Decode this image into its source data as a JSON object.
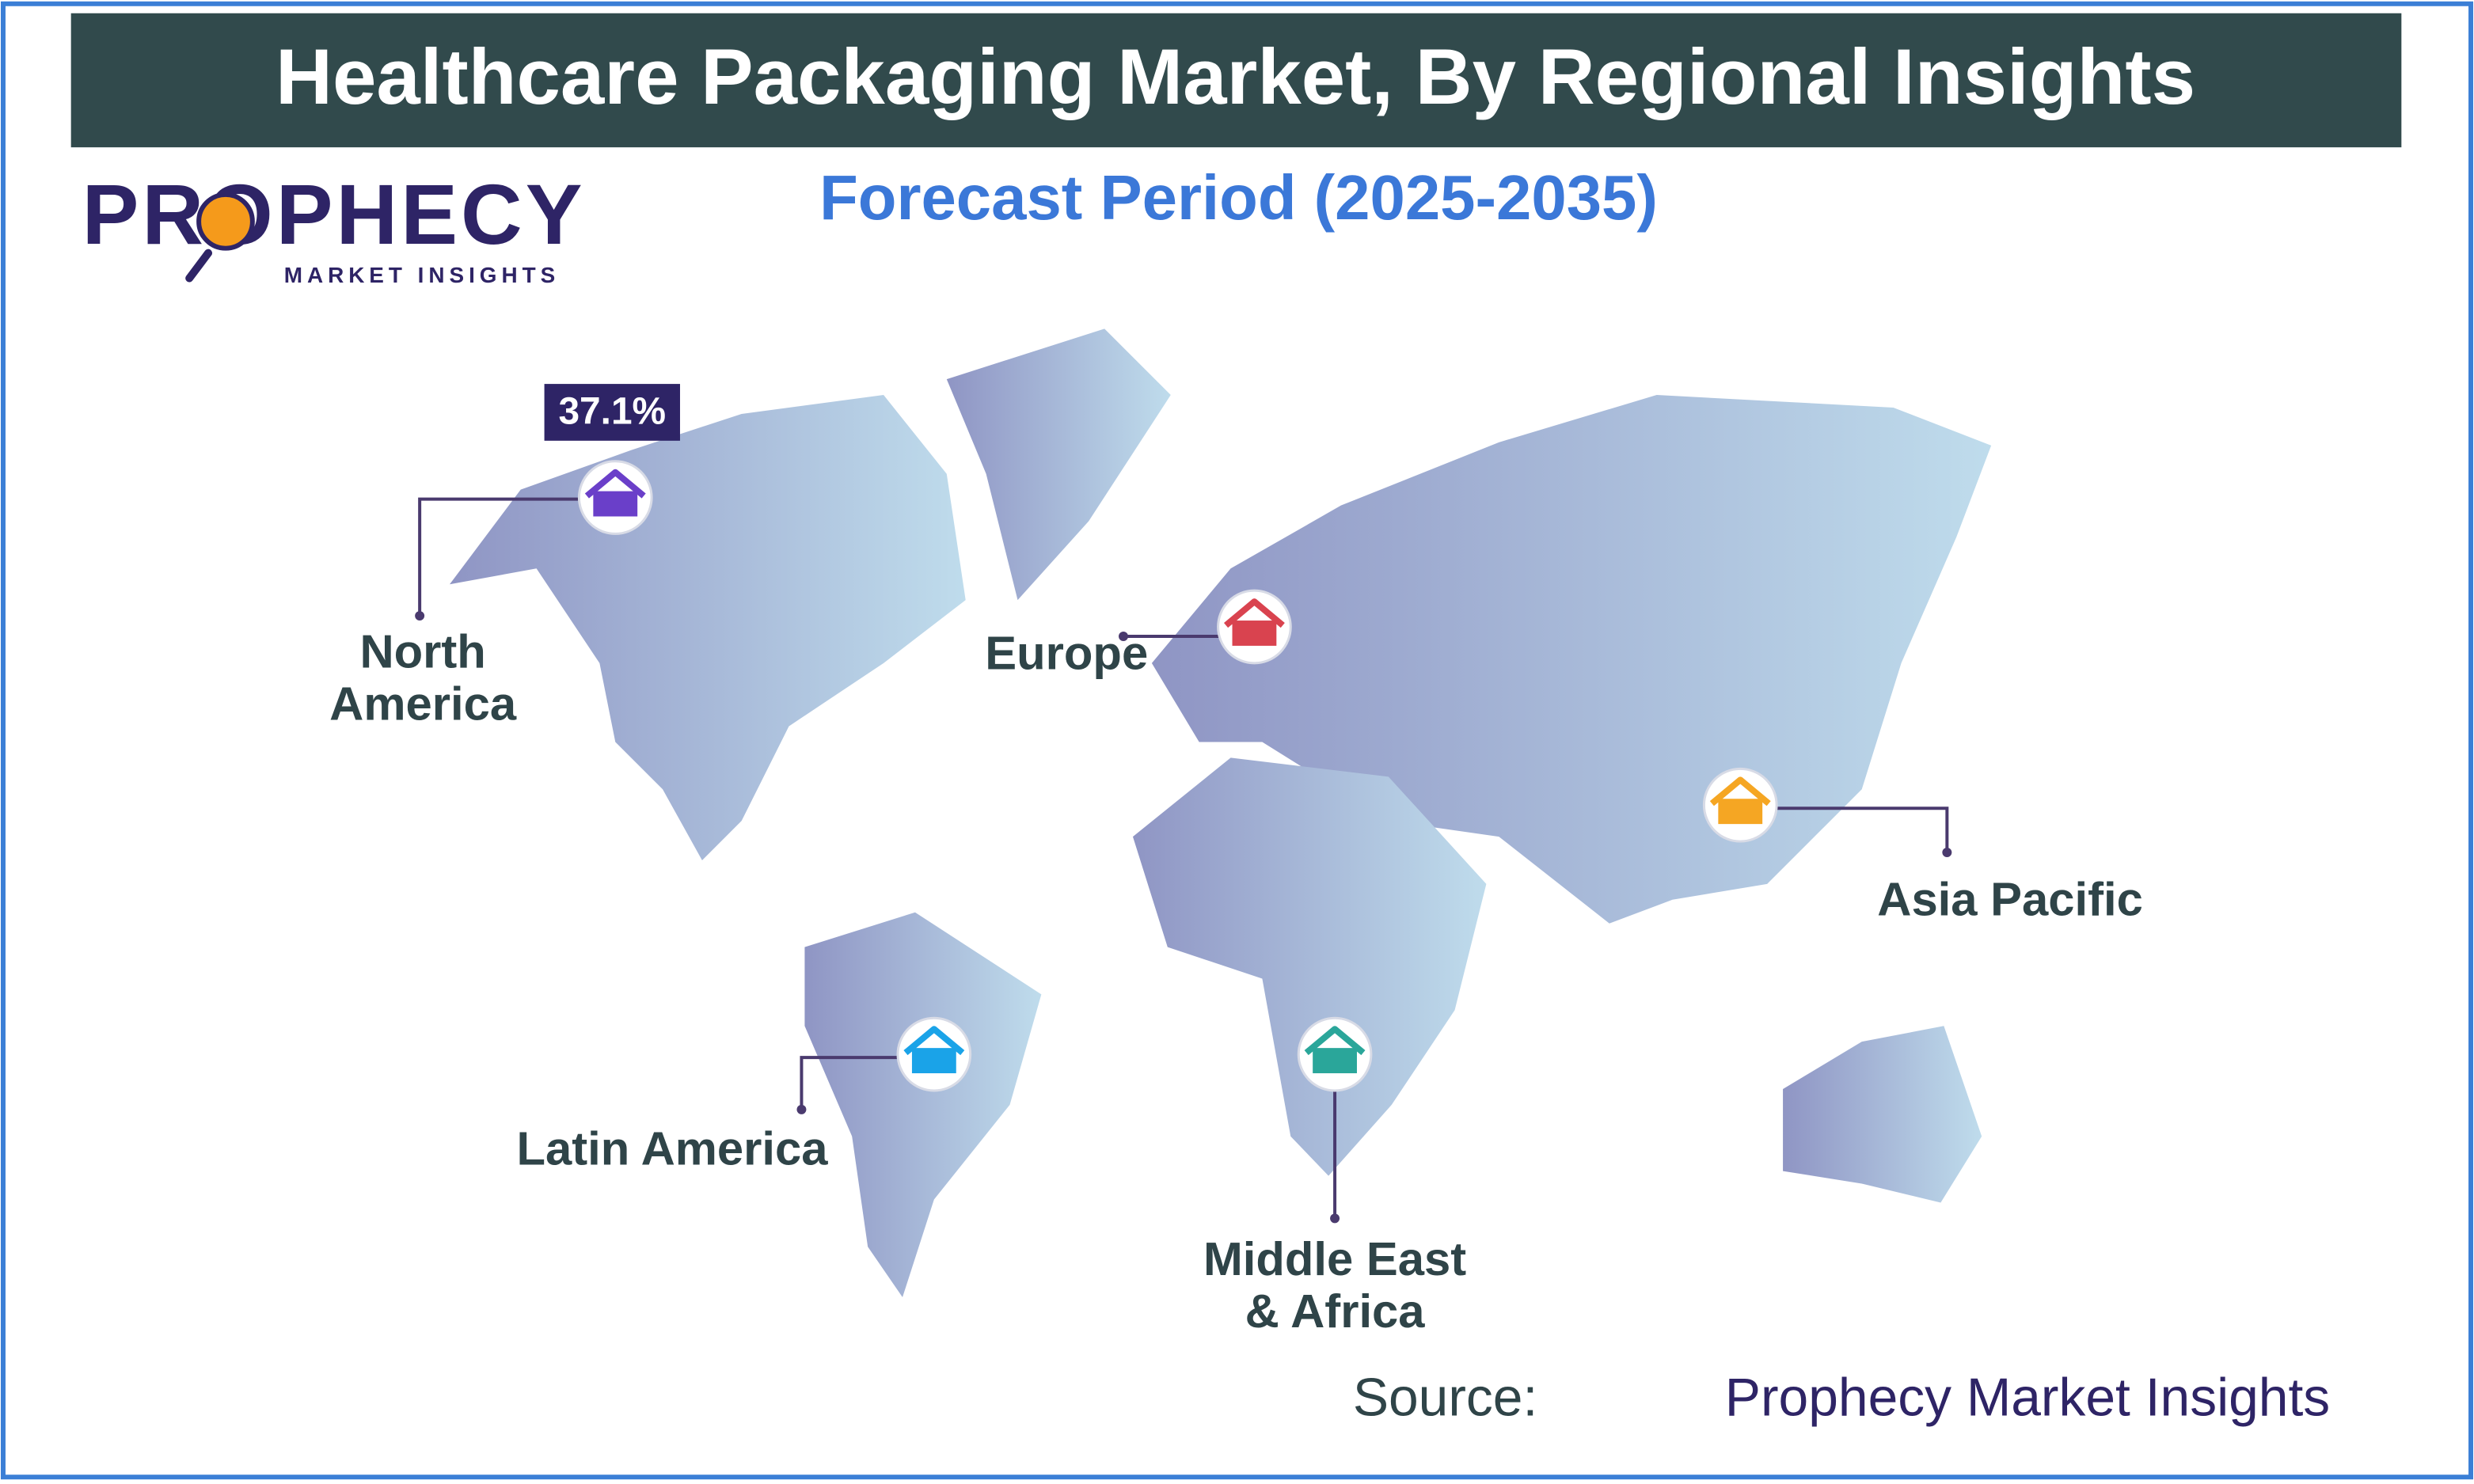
{
  "header": {
    "title": "Healthcare Packaging Market, By Regional Insights",
    "subtitle": "Forecast Period (2025-2035)"
  },
  "logo": {
    "name": "PROPHECY",
    "tagline": "MARKET INSIGHTS"
  },
  "regions": [
    {
      "label_lines": [
        "North",
        "America"
      ],
      "value": "37.1%"
    },
    {
      "label_lines": [
        "Europe"
      ]
    },
    {
      "label_lines": [
        "Asia Pacific"
      ]
    },
    {
      "label_lines": [
        "Latin America"
      ]
    },
    {
      "label_lines": [
        "Middle East",
        "& Africa"
      ]
    }
  ],
  "source": {
    "prefix": "Source:",
    "name": "Prophecy Market Insights"
  }
}
